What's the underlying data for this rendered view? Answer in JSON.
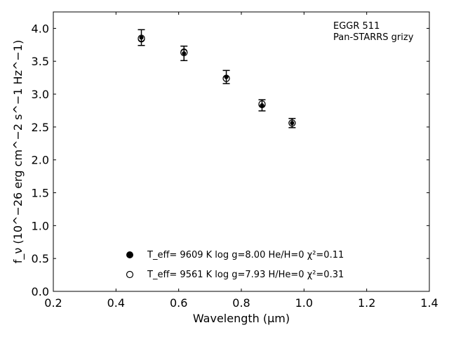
{
  "chart_data": {
    "type": "scatter",
    "xlabel": "Wavelength (μm)",
    "ylabel": "f_ν (10^−26 erg cm^−2 s^−1 Hz^−1)",
    "xlim": [
      0.2,
      1.4
    ],
    "ylim": [
      0.0,
      4.25
    ],
    "xticks": [
      "0.2",
      "0.4",
      "0.6",
      "0.8",
      "1.0",
      "1.2",
      "1.4"
    ],
    "yticks": [
      "0.0",
      "0.5",
      "1.0",
      "1.5",
      "2.0",
      "2.5",
      "3.0",
      "3.5",
      "4.0"
    ],
    "grid": false,
    "annotation": [
      "EGGR 511",
      "Pan-STARRS grizy"
    ],
    "legend_placement": "lower-center",
    "series": [
      {
        "name": "T_eff= 9609 K  log g=8.00  He/H=0  χ²=0.11",
        "marker": "filled-circle",
        "x": [
          0.481,
          0.617,
          0.752,
          0.866,
          0.962
        ],
        "y": [
          3.84,
          3.64,
          3.24,
          2.84,
          2.56
        ]
      },
      {
        "name": "T_eff= 9561 K  log g=7.93  H/He=0  χ²=0.31",
        "marker": "open-circle",
        "x": [
          0.481,
          0.617,
          0.752,
          0.866,
          0.962
        ],
        "y": [
          3.85,
          3.63,
          3.24,
          2.85,
          2.56
        ]
      }
    ],
    "observed": {
      "x": [
        0.481,
        0.617,
        0.752,
        0.866,
        0.962
      ],
      "y": [
        3.86,
        3.62,
        3.26,
        2.83,
        2.56
      ],
      "yerr": [
        0.12,
        0.11,
        0.1,
        0.085,
        0.07
      ]
    }
  }
}
